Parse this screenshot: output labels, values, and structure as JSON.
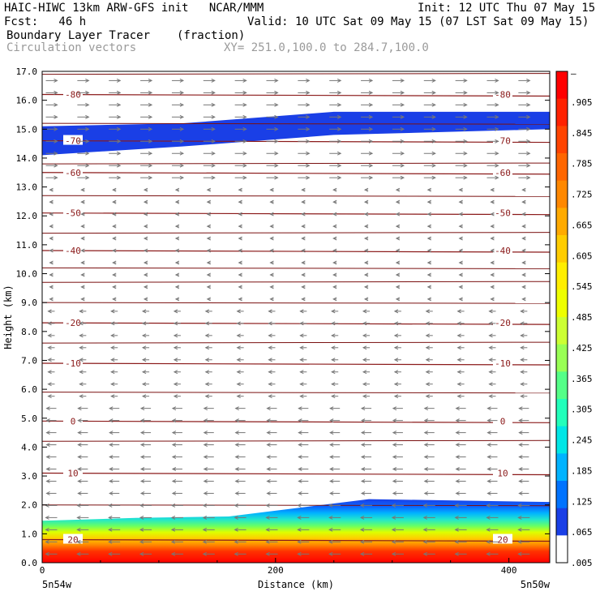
{
  "header": {
    "line1_left": "HAIC-HIWC 13km ARW-GFS init   NCAR/MMM",
    "line1_right": "Init: 12 UTC Thu 07 May 15",
    "line2_left": "Fcst:   46 h",
    "line2_right": "Valid: 10 UTC Sat 09 May 15 (07 LST Sat 09 May 15)",
    "field1_name": "Boundary Layer Tracer",
    "field1_units": "(fraction)",
    "field2_name": "Circulation vectors",
    "cross_section": "XY= 251.0,100.0 to 284.7,100.0"
  },
  "chart_data": {
    "type": "heatmap",
    "xlabel": "Distance (km)",
    "ylabel": "Height (km)",
    "xlim": [
      0,
      435
    ],
    "ylim": [
      0,
      17
    ],
    "x_ticks": [
      0,
      200,
      400
    ],
    "y_ticks": [
      "0.0",
      "1.0",
      "2.0",
      "3.0",
      "4.0",
      "5.0",
      "6.0",
      "7.0",
      "8.0",
      "9.0",
      "10.0",
      "11.0",
      "12.0",
      "13.0",
      "14.0",
      "15.0",
      "16.0",
      "17.0"
    ],
    "x_endpoint_left": "5n54w",
    "x_endpoint_right": "5n50w",
    "colorbar_labels": [
      "–",
      ".905",
      ".845",
      ".785",
      ".725",
      ".665",
      ".605",
      ".545",
      ".485",
      ".425",
      ".365",
      ".305",
      ".245",
      ".185",
      ".125",
      ".065",
      ".005"
    ],
    "colorbar_colors": [
      "#ff0000",
      "#ff2200",
      "#ff4400",
      "#ff6600",
      "#ff8800",
      "#ffaa00",
      "#ffcc00",
      "#ffee00",
      "#eeff00",
      "#ccff33",
      "#99ff55",
      "#55ff88",
      "#22ffbb",
      "#00e6e6",
      "#00b3ff",
      "#0073ff",
      "#1a3fe6",
      "#ffffff"
    ],
    "temperature_isotherms_c": [
      {
        "label": "-80",
        "height_km": 16.2
      },
      {
        "label": "-70",
        "height_km": 14.6
      },
      {
        "label": "-60",
        "height_km": 13.5
      },
      {
        "label": "-50",
        "height_km": 12.1
      },
      {
        "label": "-40",
        "height_km": 10.8
      },
      {
        "label": "-20",
        "height_km": 8.3
      },
      {
        "label": "-10",
        "height_km": 6.9
      },
      {
        "label": "0",
        "height_km": 4.9
      },
      {
        "label": "10",
        "height_km": 3.1
      },
      {
        "label": "20",
        "height_km": 0.8
      }
    ],
    "extra_contour_heights_km": [
      16.9,
      15.2,
      13.8,
      12.7,
      11.4,
      10.2,
      9.7,
      9.0,
      7.6,
      5.9,
      4.2,
      2.0
    ],
    "tracer_layers": [
      {
        "name": "upper blue band",
        "bottom_km": [
          14.1,
          14.4,
          14.8,
          15.0
        ],
        "top_km": [
          15.1,
          15.2,
          15.6,
          15.6
        ],
        "value": 0.04
      },
      {
        "name": "boundary layer",
        "top_km": [
          1.45,
          1.55,
          1.6,
          2.2,
          2.1
        ],
        "value_at_surface": 0.95
      }
    ]
  }
}
